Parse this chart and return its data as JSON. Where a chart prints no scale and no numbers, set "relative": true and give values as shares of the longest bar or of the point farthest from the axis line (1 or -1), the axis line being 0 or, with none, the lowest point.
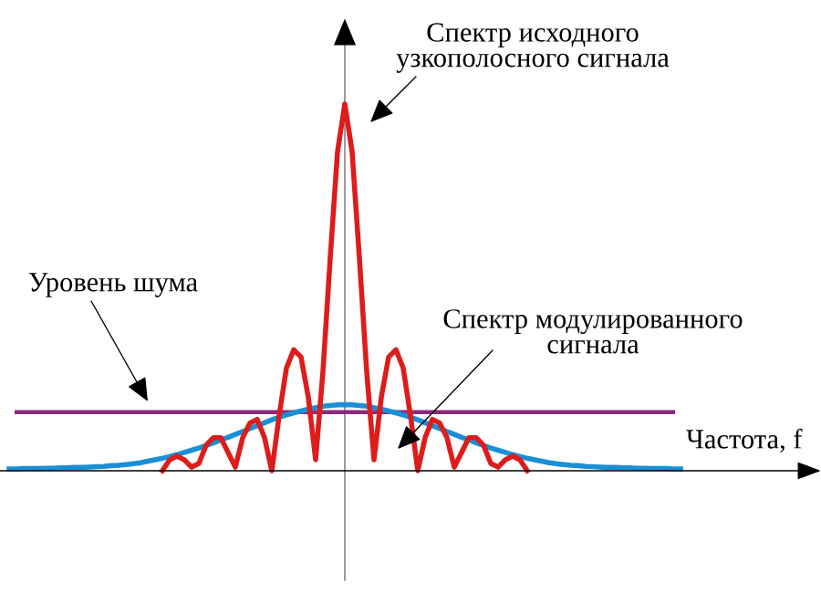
{
  "chart_data": {
    "type": "line",
    "relative": true,
    "legend": false,
    "marker": "none",
    "line_style": "solid",
    "xlabel": "Частота, f",
    "categories": [
      null,
      null,
      null,
      null,
      null,
      null,
      null,
      null,
      null,
      null,
      null,
      null,
      null,
      null,
      null,
      null,
      null,
      null,
      null,
      null,
      null,
      null,
      null,
      null,
      null,
      null,
      null,
      null,
      null,
      null,
      null,
      null,
      null,
      null,
      null,
      null,
      null,
      null,
      null,
      null,
      null,
      null,
      null,
      null,
      null,
      null,
      null,
      null,
      null,
      null,
      null,
      null,
      null,
      null,
      null,
      null,
      null,
      null,
      null,
      null,
      null,
      null,
      null,
      null,
      null,
      null,
      null,
      null,
      null,
      null,
      null,
      null,
      null,
      null,
      null,
      null,
      null,
      null,
      null,
      null,
      null,
      null,
      null,
      null,
      null,
      null,
      null,
      null,
      null,
      null,
      null,
      null,
      null
    ],
    "series": [
      {
        "color": "#1a8fd6",
        "values": [
          0.005,
          0.005,
          0.006,
          0.006,
          0.006,
          0.007,
          0.007,
          0.008,
          0.008,
          0.009,
          0.009,
          0.01,
          0.011,
          0.012,
          0.014,
          0.015,
          0.017,
          0.019,
          0.022,
          0.026,
          0.03,
          0.034,
          0.039,
          0.044,
          0.05,
          0.056,
          0.062,
          0.069,
          0.076,
          0.084,
          0.091,
          0.099,
          0.107,
          0.115,
          0.123,
          0.131,
          0.139,
          0.146,
          0.152,
          0.158,
          0.163,
          0.168,
          0.172,
          0.176,
          0.178,
          0.18,
          0.18,
          0.18,
          0.178,
          0.176,
          0.172,
          0.168,
          0.163,
          0.158,
          0.152,
          0.146,
          0.139,
          0.131,
          0.123,
          0.115,
          0.107,
          0.099,
          0.091,
          0.084,
          0.076,
          0.069,
          0.062,
          0.056,
          0.05,
          0.044,
          0.039,
          0.034,
          0.03,
          0.026,
          0.022,
          0.019,
          0.017,
          0.015,
          0.014,
          0.012,
          0.011,
          0.01,
          0.009,
          0.009,
          0.008,
          0.008,
          0.007,
          0.007,
          0.006,
          0.006,
          0.006,
          0.005,
          0.005
        ]
      },
      {
        "color": "#dd1c1c",
        "values": [
          null,
          null,
          null,
          null,
          null,
          null,
          null,
          null,
          null,
          null,
          null,
          null,
          null,
          null,
          null,
          null,
          null,
          null,
          null,
          null,
          null,
          0,
          0.03,
          0.04,
          0.03,
          0.01,
          0.02,
          0.07,
          0.09,
          0.09,
          0.05,
          0.01,
          0.09,
          0.13,
          0.14,
          0.09,
          0,
          0.15,
          0.28,
          0.33,
          0.31,
          0.2,
          0.03,
          0.27,
          0.58,
          0.87,
          1,
          0.87,
          0.58,
          0.27,
          0.03,
          0.2,
          0.31,
          0.33,
          0.28,
          0.15,
          0,
          0.09,
          0.14,
          0.13,
          0.09,
          0.01,
          0.05,
          0.09,
          0.09,
          0.07,
          0.02,
          0.01,
          0.03,
          0.04,
          0.03,
          0,
          null,
          null,
          null,
          null,
          null,
          null,
          null,
          null,
          null,
          null,
          null,
          null,
          null,
          null,
          null,
          null,
          null,
          null,
          null,
          null,
          null
        ]
      }
    ],
    "ref_lines": [
      {
        "axis": "y",
        "value": 0.16,
        "color": "#8b2a7a"
      }
    ],
    "annotations": [
      "Спектр исходного\nузкополосного сигнала",
      "Уровень шума",
      "Спектр модулированного\nсигнала"
    ]
  }
}
